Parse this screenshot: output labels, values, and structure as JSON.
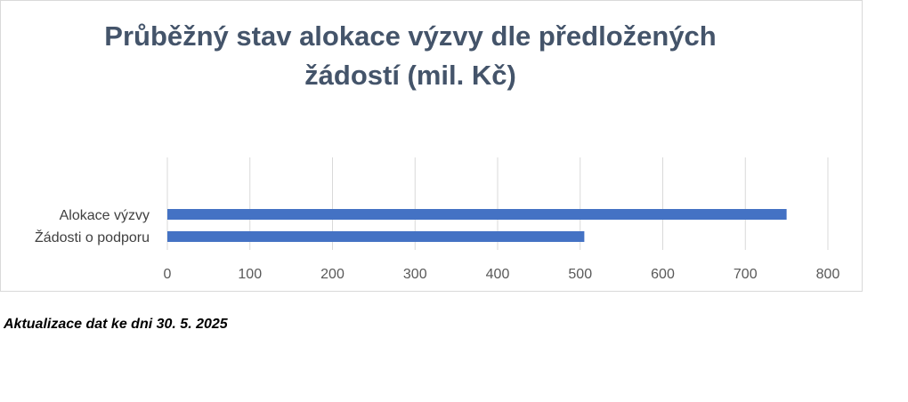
{
  "chart_data": {
    "type": "bar",
    "orientation": "horizontal",
    "title_line1": "Průběžný stav alokace výzvy dle předložených",
    "title_line2": "žádostí (mil. Kč)",
    "categories": [
      "Alokace výzvy",
      "Žádosti o podporu"
    ],
    "values": [
      750,
      505
    ],
    "xlim": [
      0,
      800
    ],
    "xticks": [
      0,
      100,
      200,
      300,
      400,
      500,
      600,
      700,
      800
    ],
    "grid": "vertical",
    "bar_color": "#4472c4",
    "title_color": "#44546a"
  },
  "footnote": "Aktualizace dat ke dni 30. 5. 2025"
}
